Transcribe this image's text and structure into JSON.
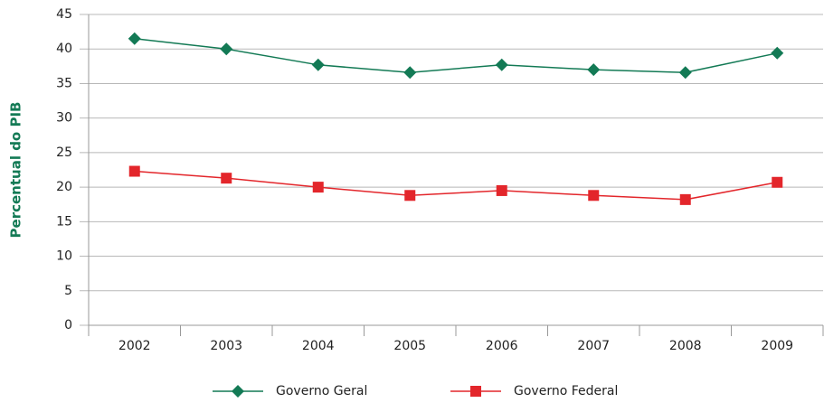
{
  "chart_data": {
    "type": "line",
    "ylabel": "Percentual do PIB",
    "categories": [
      "2002",
      "2003",
      "2004",
      "2005",
      "2006",
      "2007",
      "2008",
      "2009"
    ],
    "series": [
      {
        "name": "Governo Geral",
        "color": "#137a55",
        "marker": "diamond",
        "values": [
          41.5,
          40.0,
          37.7,
          36.6,
          37.7,
          37.0,
          36.6,
          39.4
        ]
      },
      {
        "name": "Governo Federal",
        "color": "#e3262b",
        "marker": "square",
        "values": [
          22.3,
          21.3,
          20.0,
          18.8,
          19.5,
          18.8,
          18.2,
          20.7
        ]
      }
    ],
    "ylim": [
      0,
      45
    ],
    "yticks": [
      0,
      5,
      10,
      15,
      20,
      25,
      30,
      35,
      40,
      45
    ],
    "grid": true,
    "legend": "bottom"
  }
}
